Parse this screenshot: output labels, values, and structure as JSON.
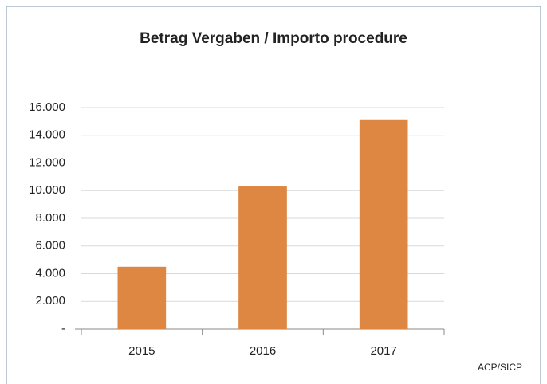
{
  "chart_data": {
    "type": "bar",
    "title": "Betrag Vergaben / Importo procedure",
    "categories": [
      "2015",
      "2016",
      "2017"
    ],
    "values": [
      4500,
      10300,
      15150
    ],
    "color": "#dd8742",
    "ylim": [
      0,
      16000
    ],
    "yticks": [
      {
        "value": 0,
        "label": "-"
      },
      {
        "value": 2000,
        "label": "2.000"
      },
      {
        "value": 4000,
        "label": "4.000"
      },
      {
        "value": 6000,
        "label": "6.000"
      },
      {
        "value": 8000,
        "label": "8.000"
      },
      {
        "value": 10000,
        "label": "10.000"
      },
      {
        "value": 12000,
        "label": "12.000"
      },
      {
        "value": 14000,
        "label": "14.000"
      },
      {
        "value": 16000,
        "label": "16.000"
      }
    ],
    "grid": true,
    "note": "ACP/SICP"
  }
}
